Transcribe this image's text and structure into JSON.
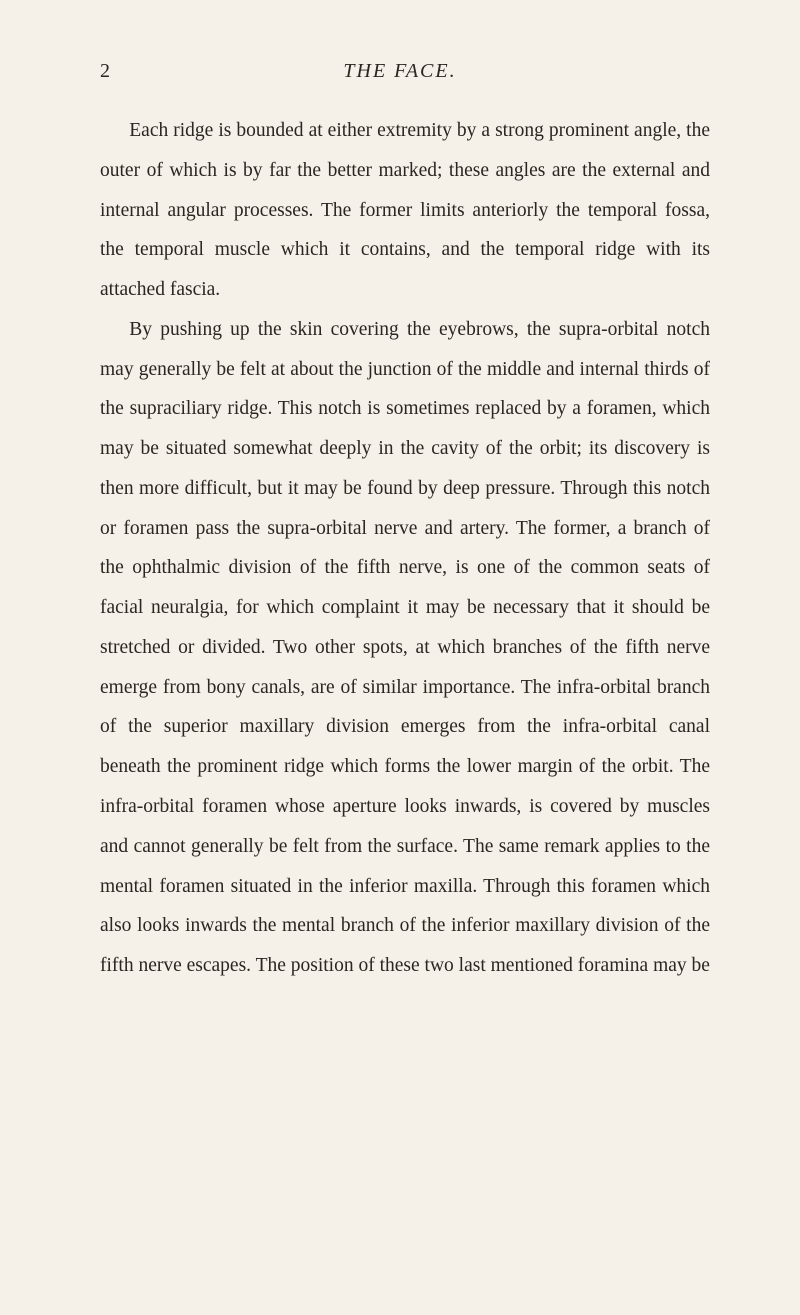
{
  "page": {
    "number": "2",
    "title": "THE FACE.",
    "background_color": "#f5f0e8",
    "text_color": "#2a2620",
    "font_family": "Georgia, Times New Roman, serif",
    "body_font_size": 19.5,
    "line_height": 2.04,
    "header_font_size": 20
  },
  "paragraphs": [
    "Each ridge is bounded at either extremity by a strong prominent angle, the outer of which is by far the better marked; these angles are the external and internal an­gular processes. The former limits anteriorly the tem­poral fossa, the temporal muscle which it contains, and the temporal ridge with its attached fascia.",
    "By pushing up the skin covering the eyebrows, the supra-orbital notch may generally be felt at about the junction of the middle and internal thirds of the supra­ciliary ridge. This notch is sometimes replaced by a foramen, which may be situated somewhat deeply in the cavity of the orbit; its discovery is then more diffi­cult, but it may be found by deep pressure. Through this notch or foramen pass the supra-orbital nerve and artery. The former, a branch of the ophthalmic division of the fifth nerve, is one of the common seats of facial neuralgia, for which complaint it may be necessary that it should be stretched or divided. Two other spots, at which branches of the fifth nerve emerge from bony canals, are of similar importance. The infra-orbital branch of the superior maxillary division emerges from the infra-orbital canal beneath the prominent ridge which forms the lower margin of the orbit. The infra-orbital foramen whose aperture looks inwards, is covered by muscles and cannot generally be felt from the surface. The same remark applies to the mental foramen situated in the inferior maxilla. Through this foramen which also looks inwards the mental branch of the inferior maxillary division of the fifth nerve escapes. The position of these two last mentioned foramina may be"
  ]
}
